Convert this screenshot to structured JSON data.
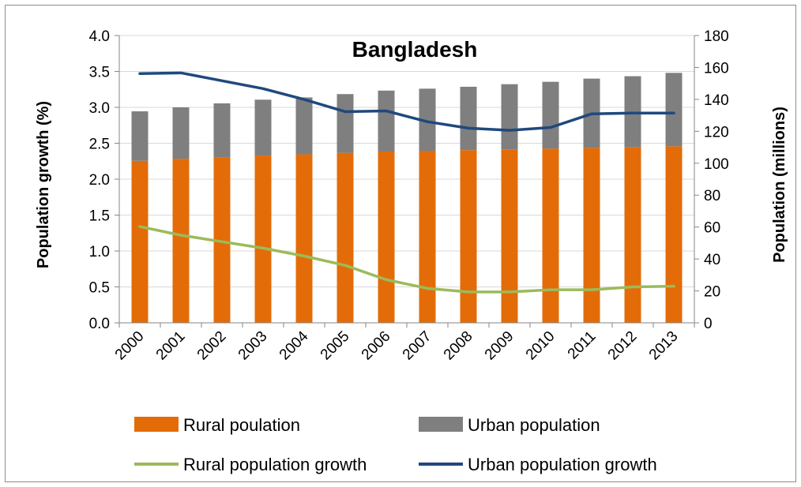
{
  "chart_data": {
    "type": "bar",
    "title": "Bangladesh",
    "categories": [
      "2000",
      "2001",
      "2002",
      "2003",
      "2004",
      "2005",
      "2006",
      "2007",
      "2008",
      "2009",
      "2010",
      "2011",
      "2012",
      "2013"
    ],
    "series": [
      {
        "name": "Rural poulation",
        "kind": "stacked-bar",
        "axis": "right",
        "color": "#E36C09",
        "values": [
          101.5,
          102.8,
          103.8,
          104.8,
          105.6,
          106.5,
          107.3,
          107.8,
          108.2,
          108.7,
          109.2,
          109.6,
          110.1,
          110.6
        ]
      },
      {
        "name": "Urban population",
        "kind": "stacked-bar",
        "axis": "right",
        "color": "#7F7F7F",
        "values": [
          31.0,
          32.2,
          33.7,
          35.0,
          35.6,
          36.8,
          38.2,
          38.9,
          39.7,
          40.8,
          41.8,
          43.4,
          44.4,
          46.0
        ]
      },
      {
        "name": "Rural population growth",
        "kind": "line",
        "axis": "left",
        "color": "#9BBB59",
        "values": [
          1.34,
          1.22,
          1.13,
          1.04,
          0.93,
          0.8,
          0.6,
          0.48,
          0.43,
          0.43,
          0.46,
          0.46,
          0.5,
          0.51
        ]
      },
      {
        "name": "Urban population growth",
        "kind": "line",
        "axis": "left",
        "color": "#1F497D",
        "values": [
          3.47,
          3.48,
          3.37,
          3.26,
          3.11,
          2.94,
          2.95,
          2.8,
          2.71,
          2.68,
          2.72,
          2.91,
          2.92,
          2.92
        ]
      }
    ],
    "ylabel": "Population growth (%)",
    "ylim": [
      0,
      4.0
    ],
    "yticks": [
      "0.0",
      "0.5",
      "1.0",
      "1.5",
      "2.0",
      "2.5",
      "3.0",
      "3.5",
      "4.0"
    ],
    "y2label": "Population  (millions)",
    "y2lim": [
      0,
      180
    ],
    "y2ticks": [
      "0",
      "20",
      "40",
      "60",
      "80",
      "100",
      "120",
      "140",
      "160",
      "180"
    ],
    "grid": true,
    "legend_position": "bottom"
  }
}
